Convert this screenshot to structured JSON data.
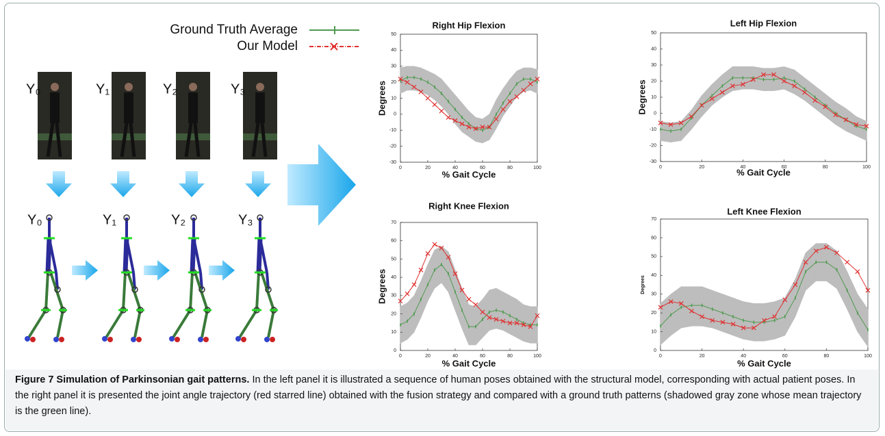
{
  "left_panel": {
    "frame_labels": [
      "Y₀",
      "Y₁",
      "Y₂",
      "Y₃"
    ]
  },
  "legend": [
    {
      "name": "Ground Truth Average",
      "color": "#4f9a4f",
      "marker": "tick"
    },
    {
      "name": "Our Model",
      "color": "#e03030",
      "marker": "x"
    }
  ],
  "chart_data": [
    {
      "type": "line",
      "title": "Right Hip Flexion",
      "x_label": "% Gait Cycle",
      "y_label": "Degrees",
      "xlim": [
        0,
        100
      ],
      "xticks": [
        0,
        20,
        40,
        60,
        80,
        100
      ],
      "ylim": [
        -30,
        50
      ],
      "yticks": [
        -30,
        -20,
        -10,
        0,
        10,
        20,
        30,
        40,
        50
      ],
      "x": [
        0,
        5,
        10,
        15,
        20,
        25,
        30,
        35,
        40,
        45,
        50,
        55,
        60,
        65,
        70,
        75,
        80,
        85,
        90,
        95,
        100
      ],
      "band": {
        "color": "#bdbdbd",
        "upper": [
          29,
          30,
          30,
          29,
          27,
          25,
          22,
          17,
          12,
          7,
          2,
          -2,
          -3,
          0,
          9,
          16,
          22,
          27,
          29,
          29,
          28
        ],
        "lower": [
          13,
          15,
          15,
          14,
          12,
          9,
          5,
          0,
          -6,
          -11,
          -14,
          -17,
          -18,
          -16,
          -9,
          -1,
          5,
          11,
          14,
          15,
          13
        ]
      },
      "series": [
        {
          "color": "#4f9a4f",
          "marker": "tick",
          "values": [
            21,
            23,
            23,
            22,
            20,
            17,
            13,
            8,
            3,
            -2,
            -6,
            -9,
            -10,
            -8,
            0,
            7,
            13,
            19,
            22,
            22,
            20
          ]
        },
        {
          "color": "#e03030",
          "marker": "x",
          "values": [
            22,
            20,
            17,
            14,
            10,
            6,
            2,
            -2,
            -4,
            -6,
            -8,
            -9,
            -8,
            -8,
            -3,
            3,
            8,
            11,
            15,
            19,
            22
          ]
        }
      ]
    },
    {
      "type": "line",
      "title": "Left Hip Flexion",
      "x_label": "% Gait Cycle",
      "y_label": "Degrees",
      "xlim": [
        0,
        100
      ],
      "xticks": [
        0,
        20,
        40,
        60,
        80,
        100
      ],
      "ylim": [
        -30,
        50
      ],
      "yticks": [
        -30,
        -20,
        -10,
        0,
        10,
        20,
        30,
        40,
        50
      ],
      "x": [
        0,
        5,
        10,
        15,
        20,
        25,
        30,
        35,
        40,
        45,
        50,
        55,
        60,
        65,
        70,
        75,
        80,
        85,
        90,
        95,
        100
      ],
      "band": {
        "color": "#bdbdbd",
        "upper": [
          -5,
          -6,
          -5,
          2,
          11,
          18,
          24,
          29,
          29,
          29,
          28,
          28,
          29,
          27,
          22,
          17,
          12,
          7,
          3,
          -2,
          -5
        ],
        "lower": [
          -17,
          -18,
          -17,
          -10,
          -2,
          5,
          10,
          14,
          15,
          15,
          14,
          14,
          15,
          12,
          8,
          3,
          -2,
          -7,
          -11,
          -14,
          -17
        ]
      },
      "series": [
        {
          "color": "#4f9a4f",
          "marker": "tick",
          "values": [
            -10,
            -11,
            -10,
            -3,
            5,
            11,
            17,
            22,
            22,
            22,
            21,
            21,
            22,
            20,
            15,
            10,
            5,
            0,
            -4,
            -8,
            -10
          ]
        },
        {
          "color": "#e03030",
          "marker": "x",
          "values": [
            -6,
            -7,
            -6,
            -2,
            5,
            9,
            13,
            17,
            18,
            21,
            24,
            24,
            20,
            17,
            13,
            8,
            4,
            -1,
            -4,
            -7,
            -8
          ]
        }
      ]
    },
    {
      "type": "line",
      "title": "Right Knee Flexion",
      "x_label": "% Gait Cycle",
      "y_label": "Degrees",
      "xlim": [
        0,
        100
      ],
      "xticks": [
        0,
        20,
        40,
        60,
        80,
        100
      ],
      "ylim": [
        0,
        70
      ],
      "yticks": [
        0,
        10,
        20,
        30,
        40,
        50,
        60,
        70
      ],
      "x": [
        0,
        5,
        10,
        15,
        20,
        25,
        30,
        35,
        40,
        45,
        50,
        55,
        60,
        65,
        70,
        75,
        80,
        85,
        90,
        95,
        100
      ],
      "band": {
        "color": "#bdbdbd",
        "upper": [
          24,
          26,
          30,
          38,
          47,
          55,
          57,
          54,
          44,
          34,
          25,
          24,
          28,
          33,
          34,
          32,
          30,
          28,
          25,
          24,
          24
        ],
        "lower": [
          4,
          6,
          10,
          18,
          27,
          34,
          37,
          32,
          22,
          12,
          3,
          3,
          7,
          11,
          12,
          11,
          9,
          7,
          5,
          4,
          4
        ]
      },
      "series": [
        {
          "color": "#4f9a4f",
          "marker": "tick",
          "values": [
            14,
            16,
            20,
            28,
            36,
            44,
            47,
            42,
            32,
            22,
            13,
            13,
            17,
            21,
            22,
            21,
            19,
            17,
            15,
            14,
            14
          ]
        },
        {
          "color": "#e03030",
          "marker": "x",
          "values": [
            27,
            31,
            36,
            44,
            53,
            58,
            56,
            51,
            42,
            33,
            28,
            25,
            21,
            18,
            17,
            16,
            15,
            15,
            14,
            13,
            19
          ]
        }
      ]
    },
    {
      "type": "line",
      "title": "Left Knee Flexion",
      "x_label": "% Gait Cycle",
      "y_label": "Degrees",
      "xlim": [
        0,
        100
      ],
      "xticks": [
        0,
        20,
        40,
        60,
        80,
        100
      ],
      "ylim": [
        0,
        70
      ],
      "yticks": [
        0,
        10,
        20,
        30,
        40,
        50,
        60,
        70
      ],
      "x": [
        0,
        5,
        10,
        15,
        20,
        25,
        30,
        35,
        40,
        45,
        50,
        55,
        60,
        65,
        70,
        75,
        80,
        85,
        90,
        95,
        100
      ],
      "band": {
        "color": "#bdbdbd",
        "upper": [
          25,
          30,
          34,
          34,
          34,
          32,
          30,
          28,
          26,
          25,
          25,
          26,
          28,
          38,
          52,
          57,
          57,
          53,
          42,
          30,
          22
        ],
        "lower": [
          3,
          8,
          12,
          13,
          13,
          12,
          10,
          8,
          6,
          5,
          5,
          6,
          8,
          18,
          32,
          37,
          37,
          33,
          22,
          10,
          2
        ]
      },
      "series": [
        {
          "color": "#4f9a4f",
          "marker": "tick",
          "values": [
            13,
            19,
            23,
            24,
            24,
            22,
            20,
            18,
            16,
            15,
            15,
            16,
            18,
            28,
            42,
            47,
            47,
            43,
            32,
            20,
            11
          ]
        },
        {
          "color": "#e03030",
          "marker": "x",
          "values": [
            23,
            26,
            25,
            21,
            18,
            16,
            15,
            14,
            12,
            12,
            16,
            18,
            27,
            35,
            47,
            53,
            55,
            52,
            47,
            42,
            32
          ]
        }
      ]
    }
  ],
  "caption": {
    "label": "Figure 7 Simulation of Parkinsonian gait patterns.",
    "text": "In the left panel it is illustrated a sequence of human poses obtained with the structural model, corresponding with actual patient poses. In the right panel it is presented the joint angle trajectory (red starred line) obtained with the fusion strategy and compared with a ground truth patterns (shadowed gray zone whose mean trajectory is the green line)."
  }
}
